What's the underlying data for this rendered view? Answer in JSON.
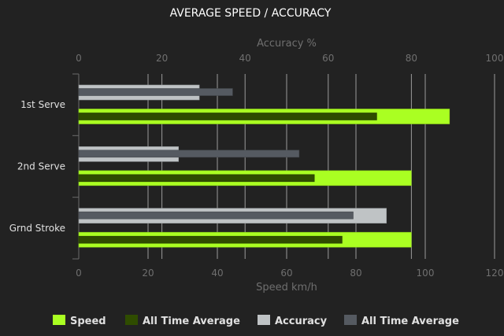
{
  "chart_data": {
    "type": "bar",
    "orientation": "horizontal",
    "title": "AVERAGE SPEED / ACCURACY",
    "categories": [
      "1st Serve",
      "2nd Serve",
      "Grnd Stroke"
    ],
    "x_bottom": {
      "label": "Speed km/h",
      "range": [
        0,
        120
      ],
      "ticks": [
        0,
        20,
        40,
        60,
        80,
        100,
        120
      ]
    },
    "x_top": {
      "label": "Accuracy %",
      "range": [
        0,
        100
      ],
      "ticks": [
        0,
        20,
        40,
        60,
        80,
        100
      ]
    },
    "grid": true,
    "legend_position": "bottom",
    "series": [
      {
        "name": "Speed",
        "axis": "bottom",
        "color": "#aaff22",
        "values": [
          107,
          96,
          96
        ]
      },
      {
        "name": "All Time Average",
        "axis": "bottom",
        "color": "#2f4c00",
        "values": [
          86,
          68,
          76
        ]
      },
      {
        "name": "Accuracy",
        "axis": "top",
        "color": "#bfc3c5",
        "values": [
          29,
          24,
          74
        ]
      },
      {
        "name": "All Time Average",
        "axis": "top",
        "color": "#555a61",
        "values": [
          37,
          53,
          66
        ]
      }
    ]
  }
}
